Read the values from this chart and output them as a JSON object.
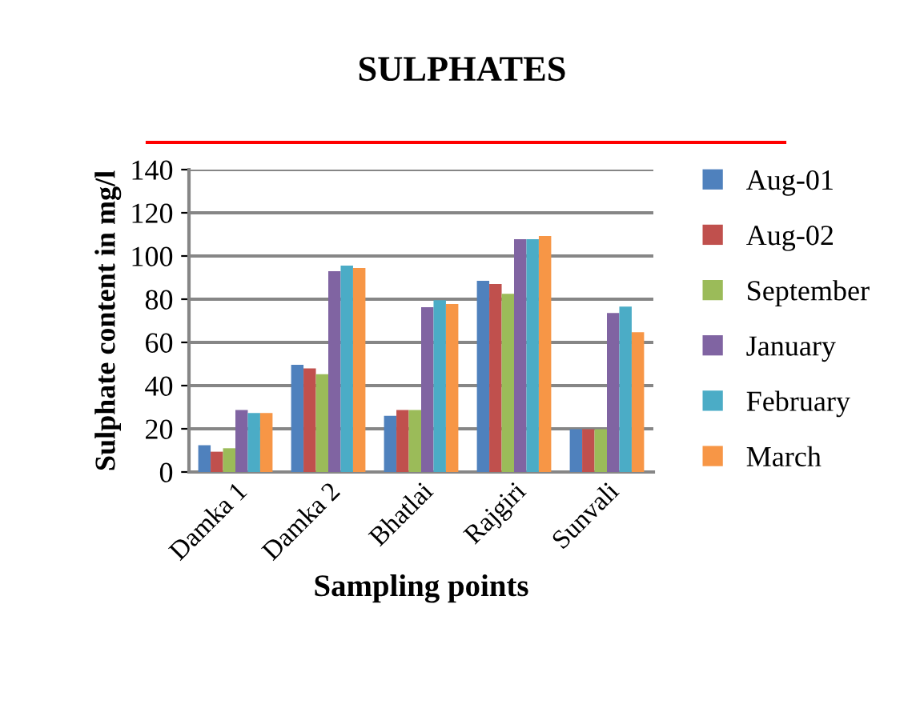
{
  "chart_data": {
    "type": "bar",
    "title": "SULPHATES",
    "xlabel": "Sampling points",
    "ylabel": "Sulphate content in mg/l",
    "categories": [
      "Damka 1",
      "Damka 2",
      "Bhatlai",
      "Rajgiri",
      "Sunvali"
    ],
    "series": [
      {
        "name": "Aug-01",
        "color": "#4f81bd",
        "values": [
          12.4,
          49.6,
          26,
          88.5,
          19.8
        ]
      },
      {
        "name": "Aug-02",
        "color": "#c0504d",
        "values": [
          9.4,
          48,
          28.7,
          87,
          19.8
        ]
      },
      {
        "name": "September",
        "color": "#9bbb59",
        "values": [
          11,
          45.3,
          28.7,
          82.5,
          19.8
        ]
      },
      {
        "name": "January",
        "color": "#8064a2",
        "values": [
          28.7,
          93,
          76.3,
          107.8,
          73.6
        ]
      },
      {
        "name": "February",
        "color": "#4bacc6",
        "values": [
          27.3,
          95.6,
          79.5,
          107.8,
          76.6
        ]
      },
      {
        "name": "March",
        "color": "#f79646",
        "values": [
          27.3,
          94.4,
          77.8,
          109.3,
          64.7
        ]
      }
    ],
    "ylim": [
      0,
      140
    ],
    "yticks": [
      0,
      20,
      40,
      60,
      80,
      100,
      120,
      140
    ],
    "grid": "y",
    "legend": "right"
  }
}
